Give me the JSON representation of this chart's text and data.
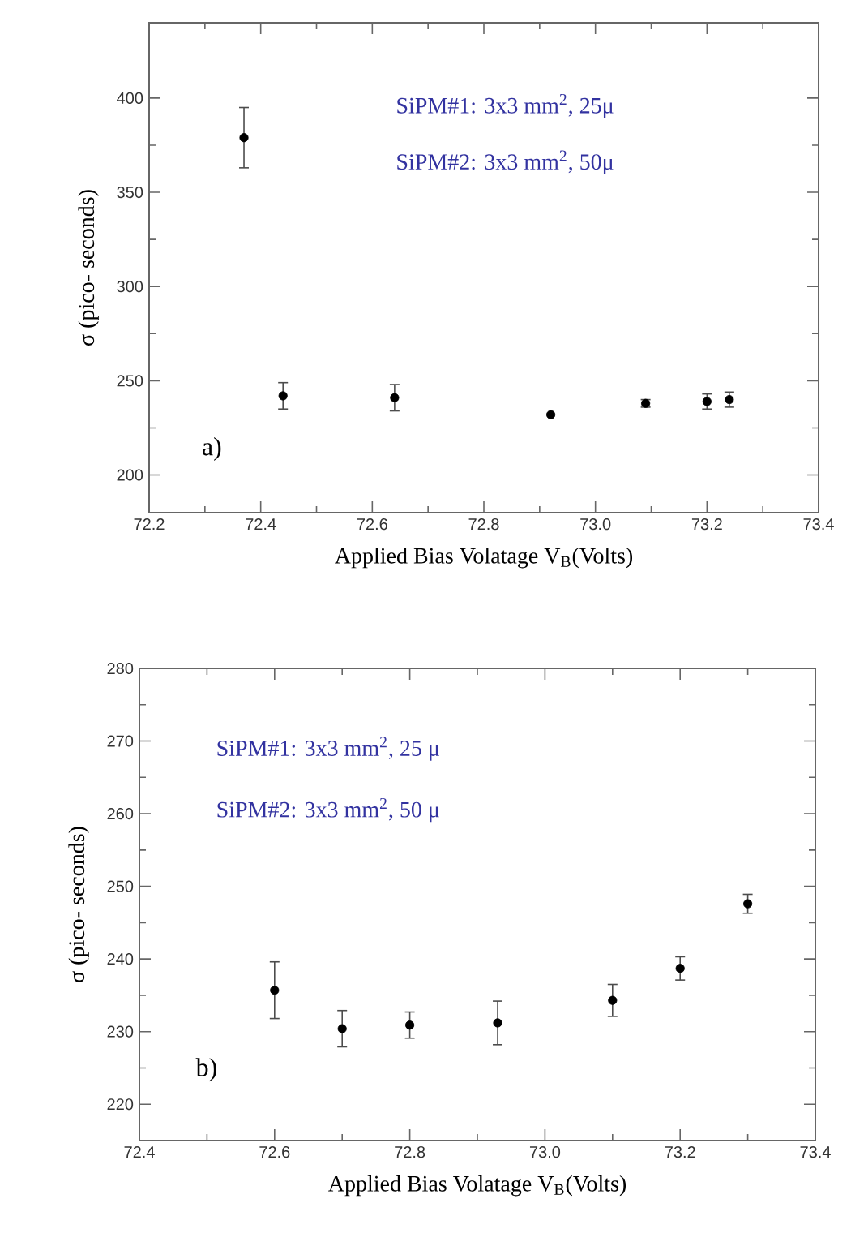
{
  "chart_data": [
    {
      "type": "scatter",
      "x": [
        72.37,
        72.44,
        72.64,
        72.92,
        73.09,
        73.2,
        73.24
      ],
      "values": [
        379,
        242,
        241,
        232,
        238,
        239,
        240
      ],
      "errors": [
        16,
        7,
        7,
        null,
        2,
        4,
        4
      ],
      "color": "#000000",
      "xlabel": "Applied Bias Volatage V$_{B}$(Volts)",
      "ylabel": "σ (pico- seconds)",
      "xlim": [
        72.2,
        73.4
      ],
      "ylim": [
        180,
        440
      ],
      "xticks": [
        72.2,
        72.4,
        72.6,
        72.8,
        {
          "value": 73.0,
          "label": "73.0"
        },
        73.2,
        73.4
      ],
      "yticks": [
        200,
        250,
        300,
        350,
        400
      ],
      "annotations": [
        "SiPM#1: 3x3 mm$^{2}$, 25μ",
        "SiPM#2: 3x3 mm$^{2}$, 50μ",
        "a)"
      ]
    },
    {
      "type": "scatter",
      "x": [
        72.6,
        72.7,
        72.8,
        72.93,
        73.1,
        73.2,
        73.3
      ],
      "values": [
        235.7,
        230.4,
        230.9,
        231.2,
        234.3,
        238.7,
        247.6
      ],
      "errors": [
        3.9,
        2.5,
        1.8,
        3,
        2.2,
        1.6,
        1.3
      ],
      "color": "#000000",
      "xlabel": "Applied Bias Volatage V$_{B}$(Volts)",
      "ylabel": "σ (pico- seconds)",
      "xlim": [
        72.4,
        73.4
      ],
      "ylim": [
        215,
        280
      ],
      "xticks": [
        72.4,
        72.6,
        72.8,
        {
          "value": 73.0,
          "label": "73.0"
        },
        73.2,
        73.4
      ],
      "yticks": [
        220,
        230,
        240,
        250,
        260,
        270,
        280
      ],
      "annotations": [
        "SiPM#1: 3x3 mm$^{2}$,  25 μ",
        "SiPM#2: 3x3 mm$^{2}$,  50 μ",
        "b)"
      ]
    }
  ]
}
